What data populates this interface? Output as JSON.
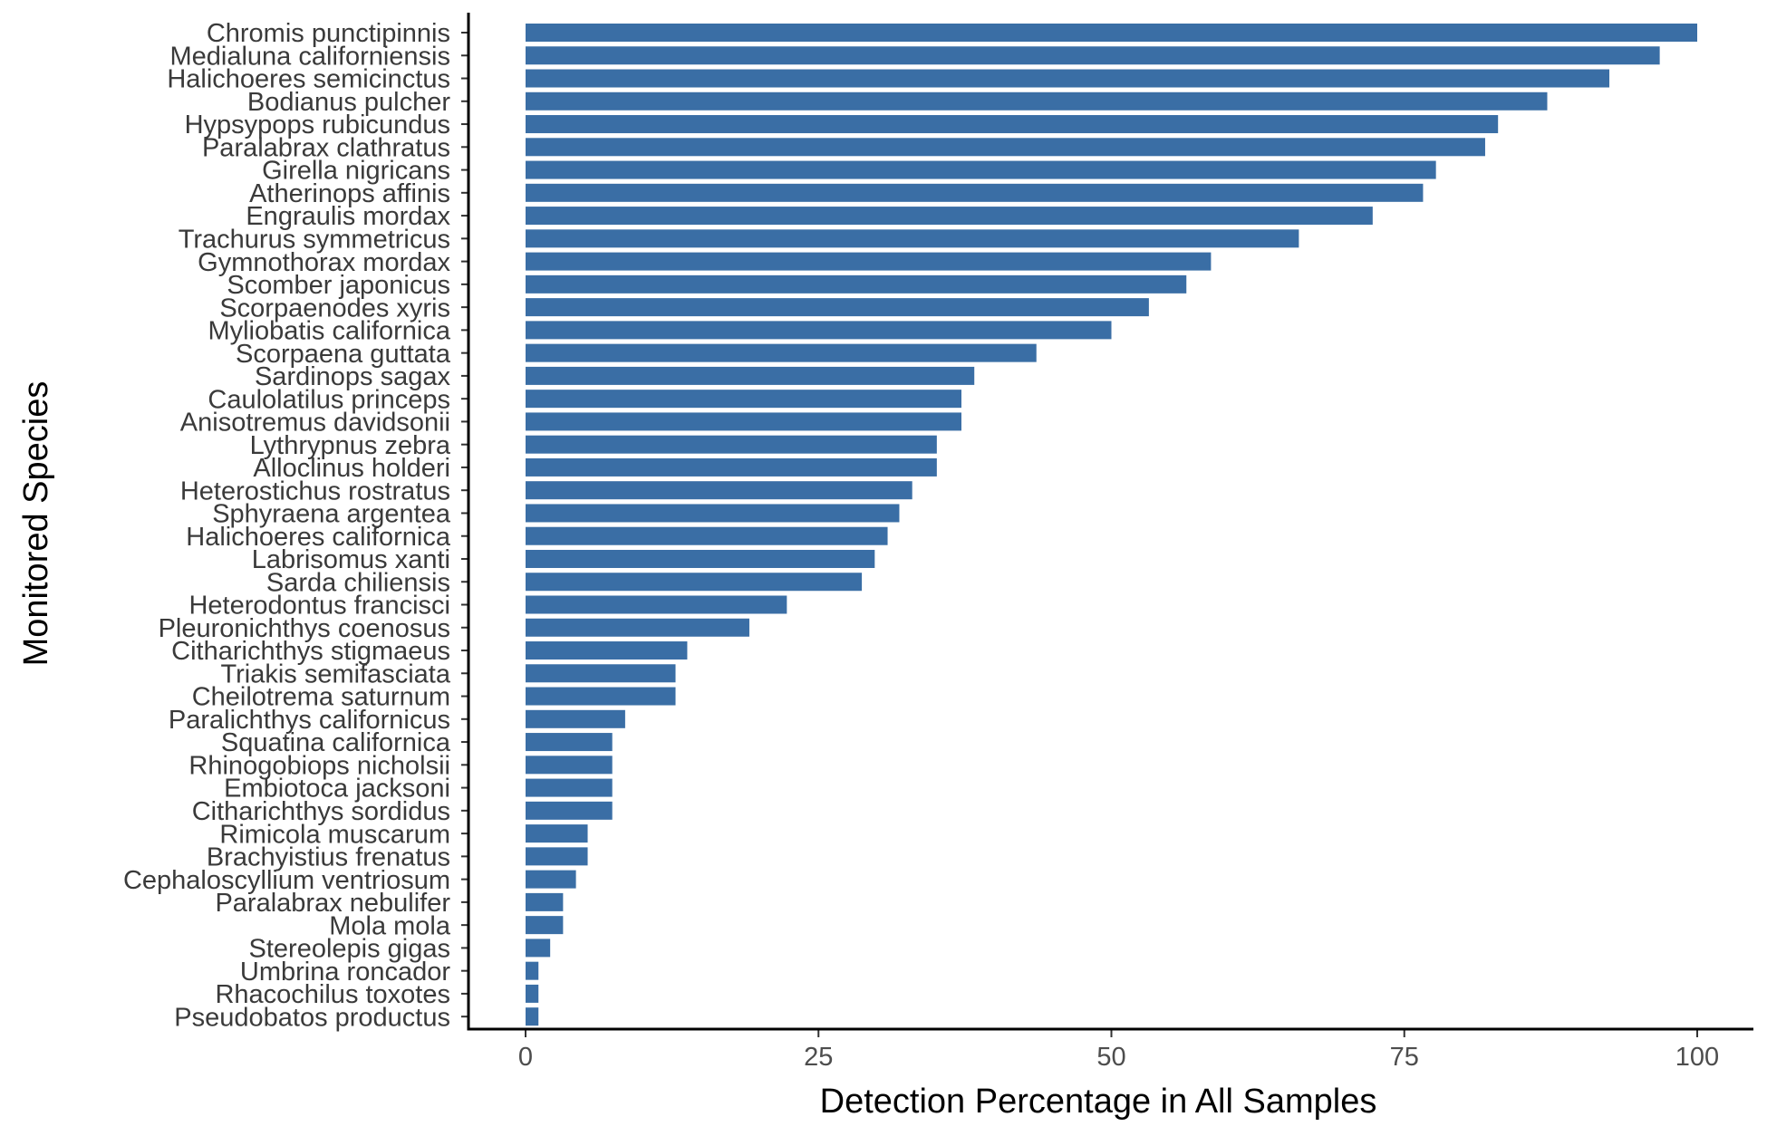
{
  "colors": {
    "bar": "#3a6ea5",
    "axis": "#000000",
    "text": "#3a3a3a"
  },
  "chart_data": {
    "type": "bar",
    "orientation": "horizontal",
    "title": "",
    "xlabel": "Detection Percentage in All Samples",
    "ylabel": "Monitored Species",
    "xlim": [
      0,
      100
    ],
    "x_ticks": [
      0,
      25,
      50,
      75,
      100
    ],
    "grid": false,
    "legend": "none",
    "categories": [
      "Chromis punctipinnis",
      "Medialuna californiensis",
      "Halichoeres semicinctus",
      "Bodianus pulcher",
      "Hypsypops rubicundus",
      "Paralabrax clathratus",
      "Girella nigricans",
      "Atherinops affinis",
      "Engraulis mordax",
      "Trachurus symmetricus",
      "Gymnothorax mordax",
      "Scomber japonicus",
      "Scorpaenodes xyris",
      "Myliobatis californica",
      "Scorpaena guttata",
      "Sardinops sagax",
      "Caulolatilus princeps",
      "Anisotremus davidsonii",
      "Lythrypnus zebra",
      "Alloclinus holderi",
      "Heterostichus rostratus",
      "Sphyraena argentea",
      "Halichoeres californica",
      "Labrisomus xanti",
      "Sarda chiliensis",
      "Heterodontus francisci",
      "Pleuronichthys coenosus",
      "Citharichthys stigmaeus",
      "Triakis semifasciata",
      "Cheilotrema saturnum",
      "Paralichthys californicus",
      "Squatina californica",
      "Rhinogobiops nicholsii",
      "Embiotoca jacksoni",
      "Citharichthys sordidus",
      "Rimicola muscarum",
      "Brachyistius frenatus",
      "Cephaloscyllium ventriosum",
      "Paralabrax nebulifer",
      "Mola mola",
      "Stereolepis gigas",
      "Umbrina roncador",
      "Rhacochilus toxotes",
      "Pseudobatos productus"
    ],
    "values": [
      100,
      96.8,
      92.5,
      87.2,
      83,
      81.9,
      77.7,
      76.6,
      72.3,
      66,
      58.5,
      56.4,
      53.2,
      50,
      43.6,
      38.3,
      37.2,
      37.2,
      35.1,
      35.1,
      33,
      31.9,
      30.9,
      29.8,
      28.7,
      22.3,
      19.1,
      13.8,
      12.8,
      12.8,
      8.5,
      7.4,
      7.4,
      7.4,
      7.4,
      5.3,
      5.3,
      4.3,
      3.2,
      3.2,
      2.1,
      1.1,
      1.1,
      1.1
    ]
  }
}
